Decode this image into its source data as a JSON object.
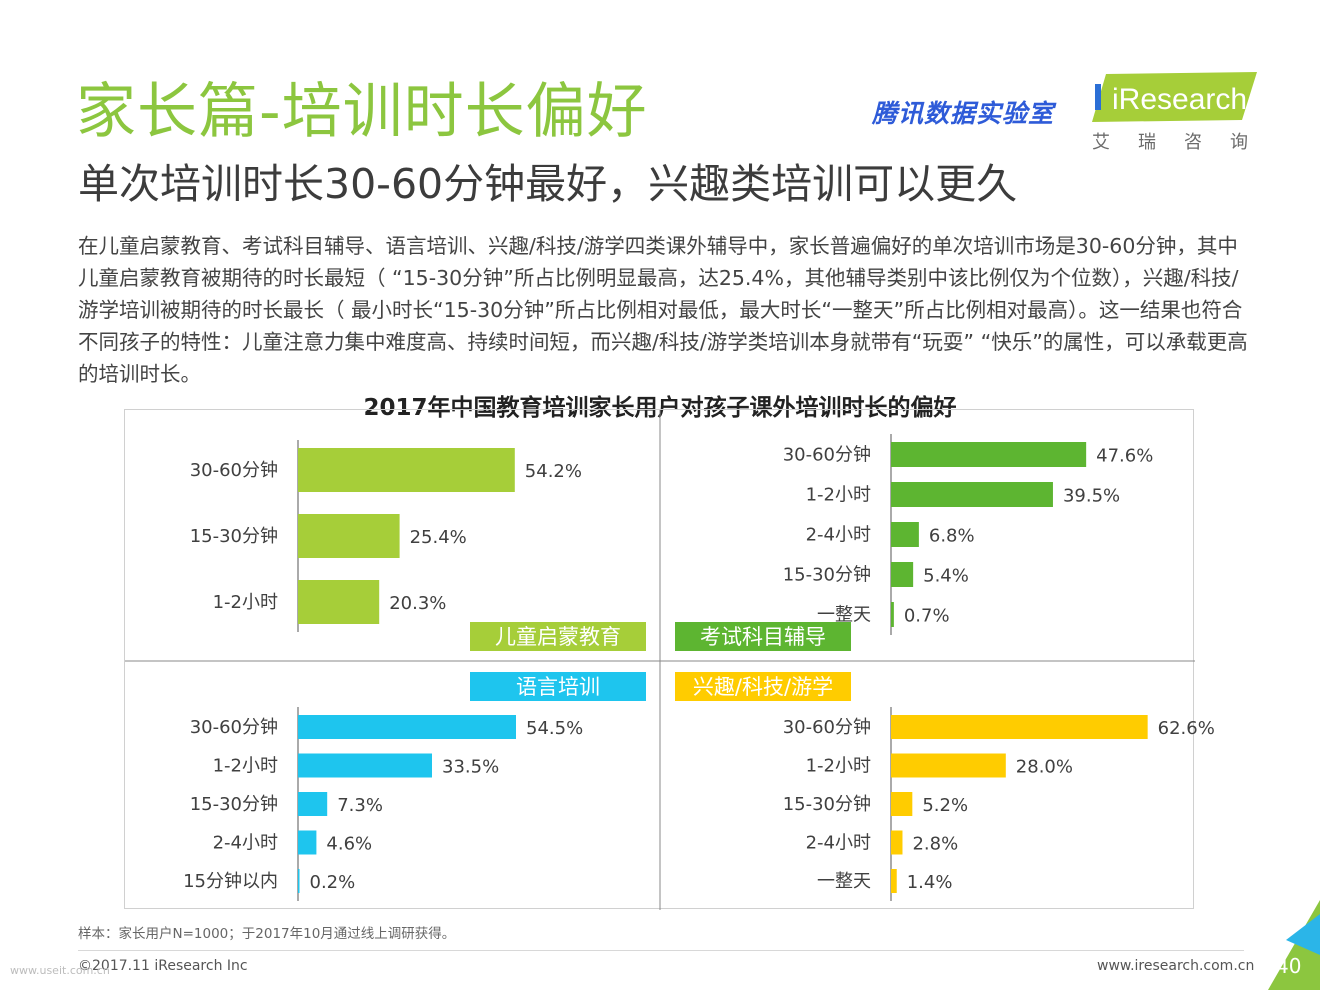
{
  "header": {
    "title": "家长篇-培训时长偏好",
    "subtitle": "单次培训时长30-60分钟最好，兴趣类培训可以更久",
    "body": "在儿童启蒙教育、考试科目辅导、语言培训、兴趣/科技/游学四类课外辅导中，家长普遍偏好的单次培训市场是30-60分钟，其中儿童启蒙教育被期待的时长最短（ “15-30分钟”所占比例明显最高，达25.4%，其他辅导类别中该比例仅为个位数），兴趣/科技/游学培训被期待的时长最长（ 最小时长“15-30分钟”所占比例相对最低，最大时长“一整天”所占比例相对最高）。这一结果也符合不同孩子的特性：儿童注意力集中难度高、持续时间短，而兴趣/科技/游学类培训本身就带有“玩耍” “快乐”的属性，可以承载更高的培训时长。"
  },
  "logos": {
    "tencent": "腾讯数据实验室",
    "iresearch": "iResearch",
    "iresearch_cn": "艾瑞咨询"
  },
  "chart_title": "2017年中国教育培训家长用户对孩子课外培训时长的偏好",
  "chart_data": [
    {
      "type": "bar",
      "orientation": "horizontal",
      "panel": "儿童启蒙教育",
      "color": "#a6ce39",
      "categories": [
        "30-60分钟",
        "15-30分钟",
        "1-2小时"
      ],
      "values": [
        54.2,
        25.4,
        20.3
      ],
      "labels": [
        "54.2%",
        "25.4%",
        "20.3%"
      ]
    },
    {
      "type": "bar",
      "orientation": "horizontal",
      "panel": "考试科目辅导",
      "color": "#5db531",
      "categories": [
        "30-60分钟",
        "1-2小时",
        "2-4小时",
        "15-30分钟",
        "一整天"
      ],
      "values": [
        47.6,
        39.5,
        6.8,
        5.4,
        0.7
      ],
      "labels": [
        "47.6%",
        "39.5%",
        "6.8%",
        "5.4%",
        "0.7%"
      ]
    },
    {
      "type": "bar",
      "orientation": "horizontal",
      "panel": "语言培训",
      "color": "#1ec5ee",
      "categories": [
        "30-60分钟",
        "1-2小时",
        "15-30分钟",
        "2-4小时",
        "15分钟以内"
      ],
      "values": [
        54.5,
        33.5,
        7.3,
        4.6,
        0.2
      ],
      "labels": [
        "54.5%",
        "33.5%",
        "7.3%",
        "4.6%",
        "0.2%"
      ]
    },
    {
      "type": "bar",
      "orientation": "horizontal",
      "panel": "兴趣/科技/游学",
      "color": "#ffcc00",
      "categories": [
        "30-60分钟",
        "1-2小时",
        "15-30分钟",
        "2-4小时",
        "一整天"
      ],
      "values": [
        62.6,
        28.0,
        5.2,
        2.8,
        1.4
      ],
      "labels": [
        "62.6%",
        "28.0%",
        "5.2%",
        "2.8%",
        "1.4%"
      ]
    }
  ],
  "footer": {
    "note": "样本：家长用户N=1000；于2017年10月通过线上调研获得。",
    "copyright": "©2017.11 iResearch Inc",
    "site": "www.iresearch.com.cn",
    "page": "40",
    "watermark": "www.useit.com.cn"
  },
  "colors": {
    "title_green": "#8cc63f",
    "accent_blue": "#2bb5e8",
    "accent_green": "#8cc63f"
  }
}
